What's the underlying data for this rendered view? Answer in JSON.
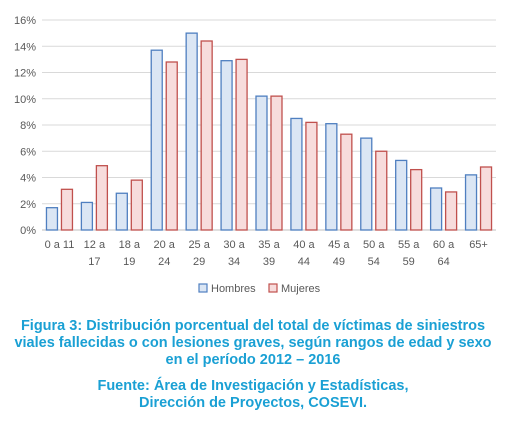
{
  "chart_data": {
    "type": "bar",
    "categories": [
      [
        "0 a 11",
        ""
      ],
      [
        "12 a",
        "17"
      ],
      [
        "18 a",
        "19"
      ],
      [
        "20 a",
        "24"
      ],
      [
        "25 a",
        "29"
      ],
      [
        "30 a",
        "34"
      ],
      [
        "35 a",
        "39"
      ],
      [
        "40 a",
        "44"
      ],
      [
        "45 a",
        "49"
      ],
      [
        "50 a",
        "54"
      ],
      [
        "55 a",
        "59"
      ],
      [
        "60 a",
        "64"
      ],
      [
        "65+",
        ""
      ]
    ],
    "series": [
      {
        "name": "Hombres",
        "values": [
          1.7,
          2.1,
          2.8,
          13.7,
          15.0,
          12.9,
          10.2,
          8.5,
          8.1,
          7.0,
          5.3,
          3.2,
          4.2
        ]
      },
      {
        "name": "Mujeres",
        "values": [
          3.1,
          4.9,
          3.8,
          12.8,
          14.4,
          13.0,
          10.2,
          8.2,
          7.3,
          6.0,
          4.6,
          2.9,
          4.8
        ]
      }
    ],
    "y_ticks": [
      "0%",
      "2%",
      "4%",
      "6%",
      "8%",
      "10%",
      "12%",
      "14%",
      "16%"
    ],
    "ylim": [
      0,
      16
    ],
    "grid": true,
    "legend_position": "bottom",
    "colors": {
      "Hombres_fill": "#dbe6f4",
      "Hombres_stroke": "#4f7fc0",
      "Mujeres_fill": "#f7dcdc",
      "Mujeres_stroke": "#c0504d",
      "grid": "#d9d9d9",
      "axis": "#bfbfbf"
    }
  },
  "caption": {
    "title_lines": [
      "Figura 3: Distribución porcentual del total de víctimas de siniestros",
      "viales fallecidas o con lesiones graves, según rangos de edad y sexo",
      "en el período 2012 – 2016"
    ],
    "source_lines": [
      "Fuente: Área de Investigación y Estadísticas,",
      "Dirección de Proyectos, COSEVI."
    ],
    "color": "#1aa0d4"
  }
}
